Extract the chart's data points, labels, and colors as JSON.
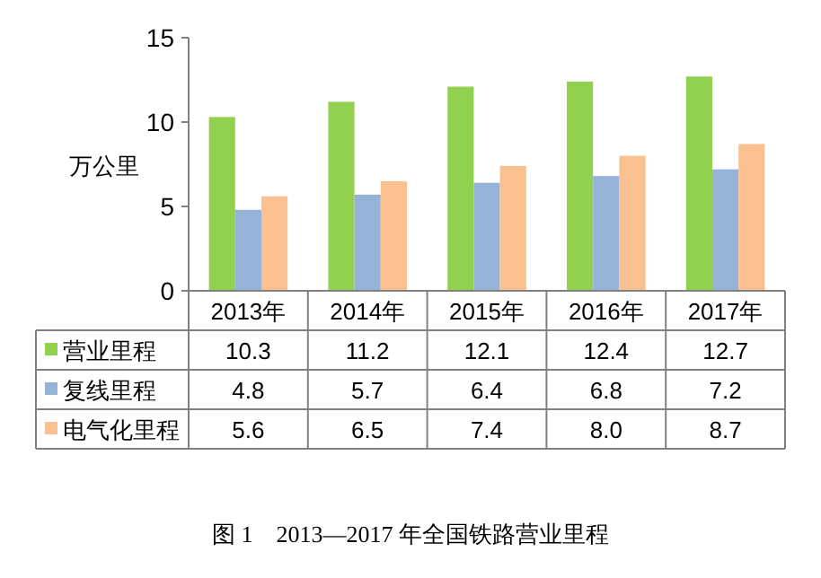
{
  "chart_data": {
    "type": "bar",
    "title": "图 1　2013—2017 年全国铁路营业里程",
    "ylabel": "万公里",
    "categories": [
      "2013年",
      "2014年",
      "2015年",
      "2016年",
      "2017年"
    ],
    "series": [
      {
        "name": "营业里程",
        "color": "#92d050",
        "values": [
          10.3,
          11.2,
          12.1,
          12.4,
          12.7
        ],
        "value_labels": [
          "10.3",
          "11.2",
          "12.1",
          "12.4",
          "12.7"
        ]
      },
      {
        "name": "复线里程",
        "color": "#95b3d7",
        "values": [
          4.8,
          5.7,
          6.4,
          6.8,
          7.2
        ],
        "value_labels": [
          "4.8",
          "5.7",
          "6.4",
          "6.8",
          "7.2"
        ]
      },
      {
        "name": "电气化里程",
        "color": "#fac090",
        "values": [
          5.6,
          6.5,
          7.4,
          8.0,
          8.7
        ],
        "value_labels": [
          "5.6",
          "6.5",
          "7.4",
          "8.0",
          "8.7"
        ]
      }
    ],
    "ylim": [
      0,
      15
    ],
    "yticks": [
      0,
      5,
      10,
      15
    ],
    "legend": "bottom"
  }
}
